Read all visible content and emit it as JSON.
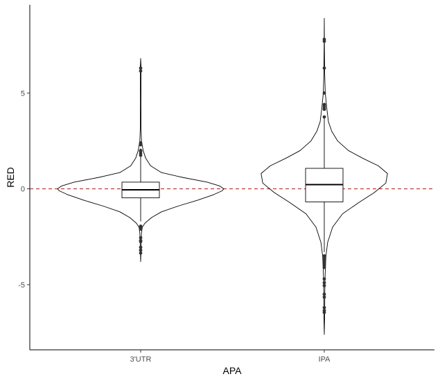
{
  "chart_data": {
    "type": "violin",
    "title": "",
    "xlabel": "APA",
    "ylabel": "RED",
    "categories": [
      "3'UTR",
      "IPA"
    ],
    "ylim": [
      -8.4,
      9.6
    ],
    "yticks": [
      -5,
      0,
      5
    ],
    "ytick_labels": [
      "-5",
      "0",
      "5"
    ],
    "reference_line": {
      "y": 0,
      "style": "dashed",
      "color": "#e41a1c"
    },
    "grid": false,
    "legend": "none",
    "groups": [
      {
        "name": "3'UTR",
        "violin": {
          "min": -3.8,
          "max": 6.8,
          "density": [
            [
              -3.8,
              0.0
            ],
            [
              -3.0,
              0.005
            ],
            [
              -2.3,
              0.01
            ],
            [
              -2.0,
              0.02
            ],
            [
              -1.8,
              0.05
            ],
            [
              -1.5,
              0.13
            ],
            [
              -1.2,
              0.25
            ],
            [
              -0.9,
              0.45
            ],
            [
              -0.6,
              0.68
            ],
            [
              -0.3,
              0.88
            ],
            [
              -0.1,
              0.98
            ],
            [
              0.0,
              1.0
            ],
            [
              0.15,
              0.95
            ],
            [
              0.35,
              0.8
            ],
            [
              0.6,
              0.5
            ],
            [
              0.85,
              0.25
            ],
            [
              1.2,
              0.12
            ],
            [
              1.6,
              0.06
            ],
            [
              2.0,
              0.03
            ],
            [
              2.5,
              0.01
            ],
            [
              3.2,
              0.004
            ],
            [
              4.5,
              0.003
            ],
            [
              5.8,
              0.004
            ],
            [
              6.3,
              0.005
            ],
            [
              6.8,
              0.0
            ]
          ]
        },
        "box": {
          "q1": -0.47,
          "median": -0.05,
          "q3": 0.35,
          "whisker_low": -1.7,
          "whisker_high": 2.1
        },
        "outliers": [
          6.3,
          6.15,
          2.4,
          2.3,
          2.0,
          1.95,
          1.85,
          1.75,
          -1.95,
          -2.05,
          -2.1,
          -2.55,
          -2.7,
          -2.75,
          -3.05,
          -3.2,
          -3.35
        ]
      },
      {
        "name": "IPA",
        "violin": {
          "min": -7.6,
          "max": 8.9,
          "density": [
            [
              -7.6,
              0.0
            ],
            [
              -6.5,
              0.005
            ],
            [
              -5.5,
              0.006
            ],
            [
              -4.5,
              0.01
            ],
            [
              -3.5,
              0.02
            ],
            [
              -2.8,
              0.04
            ],
            [
              -2.0,
              0.1
            ],
            [
              -1.3,
              0.22
            ],
            [
              -0.7,
              0.42
            ],
            [
              -0.2,
              0.6
            ],
            [
              0.3,
              0.74
            ],
            [
              0.8,
              0.76
            ],
            [
              1.2,
              0.65
            ],
            [
              1.6,
              0.46
            ],
            [
              2.0,
              0.29
            ],
            [
              2.5,
              0.16
            ],
            [
              3.0,
              0.09
            ],
            [
              3.5,
              0.05
            ],
            [
              4.2,
              0.03
            ],
            [
              5.0,
              0.012
            ],
            [
              6.0,
              0.005
            ],
            [
              7.5,
              0.002
            ],
            [
              8.9,
              0.0
            ]
          ]
        },
        "box": {
          "q1": -0.68,
          "median": 0.22,
          "q3": 1.07,
          "whisker_low": -3.3,
          "whisker_high": 3.8
        },
        "outliers": [
          7.8,
          7.7,
          6.3,
          5.0,
          4.4,
          4.3,
          4.2,
          4.15,
          3.75,
          -3.5,
          -3.65,
          -3.8,
          -3.95,
          -4.1,
          -4.7,
          -4.9,
          -5.05,
          -5.5,
          -5.65,
          -6.2,
          -6.35,
          -6.45
        ]
      }
    ]
  }
}
